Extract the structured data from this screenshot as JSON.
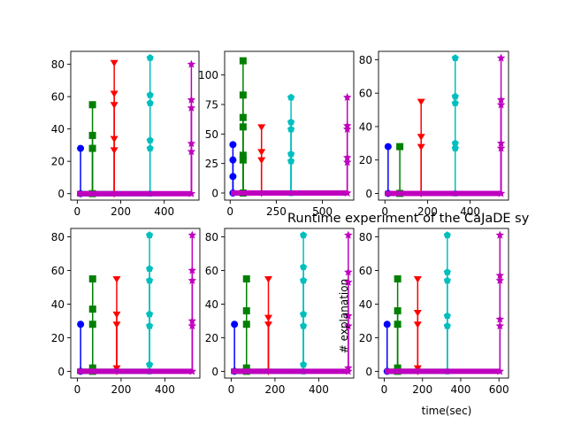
{
  "figure": {
    "suptitle": "Runtime experiment of the CaJaDE sy",
    "xlabel": "time(sec)",
    "ylabel": "# explanation"
  },
  "series_style": [
    {
      "color": "#0000ff",
      "marker": "circle"
    },
    {
      "color": "#008000",
      "marker": "square"
    },
    {
      "color": "#ff0000",
      "marker": "triangle-down"
    },
    {
      "color": "#00bfbf",
      "marker": "pentagon"
    },
    {
      "color": "#bf00bf",
      "marker": "star"
    }
  ],
  "chart_data": [
    {
      "type": "stem",
      "xlim": [
        -30,
        560
      ],
      "ylim": [
        -4,
        88
      ],
      "xticks": [
        0,
        200,
        400
      ],
      "yticks": [
        0,
        20,
        40,
        60,
        80
      ],
      "series": [
        {
          "x": [
            15
          ],
          "y": [
            28
          ]
        },
        {
          "x": [
            70,
            70,
            70
          ],
          "y": [
            28,
            36,
            55
          ]
        },
        {
          "x": [
            170,
            170,
            170,
            170,
            170
          ],
          "y": [
            27,
            34,
            55,
            62,
            81
          ]
        },
        {
          "x": [
            335,
            335,
            335,
            335,
            335
          ],
          "y": [
            28,
            33,
            56,
            61,
            84
          ]
        },
        {
          "x": [
            525,
            525,
            525,
            525,
            525
          ],
          "y": [
            26,
            31,
            53,
            58,
            80
          ]
        }
      ]
    },
    {
      "type": "stem",
      "xlim": [
        -30,
        670
      ],
      "ylim": [
        -6,
        120
      ],
      "xticks": [
        0,
        250,
        500
      ],
      "yticks": [
        0,
        25,
        50,
        75,
        100
      ],
      "series": [
        {
          "x": [
            15,
            15,
            15
          ],
          "y": [
            14,
            28,
            41
          ]
        },
        {
          "x": [
            70,
            70,
            70,
            70,
            70,
            70
          ],
          "y": [
            28,
            32,
            56,
            64,
            83,
            112
          ]
        },
        {
          "x": [
            170,
            170,
            170
          ],
          "y": [
            28,
            35,
            56
          ]
        },
        {
          "x": [
            330,
            330,
            330,
            330,
            330
          ],
          "y": [
            27,
            33,
            54,
            60,
            81
          ]
        },
        {
          "x": [
            635,
            635,
            635,
            635,
            635
          ],
          "y": [
            26,
            30,
            54,
            57,
            81
          ]
        }
      ]
    },
    {
      "type": "stem",
      "xlim": [
        -30,
        580
      ],
      "ylim": [
        -4,
        85
      ],
      "xticks": [
        0,
        200,
        400
      ],
      "yticks": [
        0,
        20,
        40,
        60,
        80
      ],
      "series": [
        {
          "x": [
            15
          ],
          "y": [
            28
          ]
        },
        {
          "x": [
            70
          ],
          "y": [
            28
          ]
        },
        {
          "x": [
            170,
            170,
            170
          ],
          "y": [
            28,
            34,
            55
          ]
        },
        {
          "x": [
            330,
            330,
            330,
            330,
            330
          ],
          "y": [
            27,
            30,
            54,
            58,
            81
          ]
        },
        {
          "x": [
            545,
            545,
            545,
            545,
            545
          ],
          "y": [
            27,
            30,
            53,
            56,
            81
          ]
        }
      ]
    },
    {
      "type": "stem",
      "xlim": [
        -30,
        560
      ],
      "ylim": [
        -4,
        85
      ],
      "xticks": [
        0,
        200,
        400
      ],
      "yticks": [
        0,
        20,
        40,
        60,
        80
      ],
      "series": [
        {
          "x": [
            15
          ],
          "y": [
            28
          ]
        },
        {
          "x": [
            70,
            70,
            70,
            70
          ],
          "y": [
            2,
            28,
            37,
            55
          ]
        },
        {
          "x": [
            180,
            180,
            180,
            180
          ],
          "y": [
            2,
            28,
            34,
            55
          ]
        },
        {
          "x": [
            330,
            330,
            330,
            330,
            330,
            330
          ],
          "y": [
            4,
            27,
            34,
            54,
            61,
            81
          ]
        },
        {
          "x": [
            525,
            525,
            525,
            525,
            525
          ],
          "y": [
            27,
            30,
            54,
            60,
            81
          ]
        }
      ]
    },
    {
      "type": "stem",
      "xlim": [
        -30,
        560
      ],
      "ylim": [
        -4,
        85
      ],
      "xticks": [
        0,
        200,
        400
      ],
      "yticks": [
        0,
        20,
        40,
        60,
        80
      ],
      "series": [
        {
          "x": [
            15
          ],
          "y": [
            28
          ]
        },
        {
          "x": [
            70,
            70,
            70,
            70
          ],
          "y": [
            2,
            28,
            36,
            55
          ]
        },
        {
          "x": [
            170,
            170,
            170
          ],
          "y": [
            28,
            32,
            55
          ]
        },
        {
          "x": [
            330,
            330,
            330,
            330,
            330,
            330
          ],
          "y": [
            4,
            27,
            34,
            54,
            62,
            81
          ]
        },
        {
          "x": [
            535,
            535,
            535,
            535,
            535,
            535
          ],
          "y": [
            2,
            27,
            33,
            53,
            59,
            81
          ]
        }
      ]
    },
    {
      "type": "stem",
      "xlim": [
        -30,
        650
      ],
      "ylim": [
        -4,
        85
      ],
      "xticks": [
        0,
        200,
        400,
        600
      ],
      "yticks": [
        0,
        20,
        40,
        60,
        80
      ],
      "series": [
        {
          "x": [
            15
          ],
          "y": [
            28
          ]
        },
        {
          "x": [
            70,
            70,
            70,
            70
          ],
          "y": [
            2,
            28,
            36,
            55
          ]
        },
        {
          "x": [
            175,
            175,
            175,
            175
          ],
          "y": [
            2,
            28,
            35,
            55
          ]
        },
        {
          "x": [
            330,
            330,
            330,
            330,
            330
          ],
          "y": [
            27,
            33,
            54,
            59,
            81
          ]
        },
        {
          "x": [
            605,
            605,
            605,
            605,
            605
          ],
          "y": [
            27,
            31,
            54,
            57,
            81
          ]
        }
      ]
    }
  ]
}
